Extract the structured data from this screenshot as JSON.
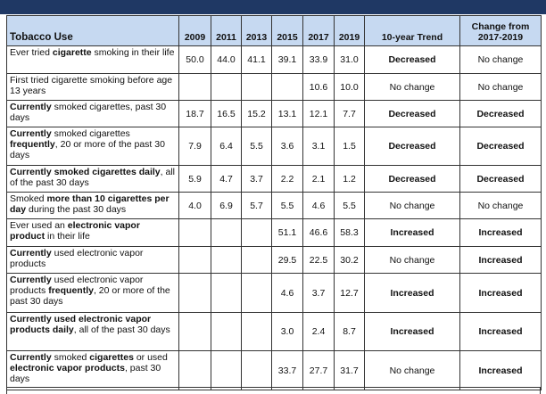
{
  "table": {
    "header": [
      "Tobacco Use",
      "2009",
      "2011",
      "2013",
      "2015",
      "2017",
      "2019",
      "10-year Trend",
      "Change from 2017-2019"
    ],
    "rows": [
      {
        "label": [
          {
            "text": "Ever tried "
          },
          {
            "text": "cigarette",
            "bold": true
          },
          {
            "text": " smoking in their life"
          }
        ],
        "cells": [
          "50.0",
          "44.0",
          "41.1",
          "39.1",
          "33.9",
          "31.0",
          "Decreased",
          "No change"
        ]
      },
      {
        "label": [
          {
            "text": "First tried cigarette smoking before age 13 years"
          }
        ],
        "cells": [
          null,
          null,
          null,
          null,
          "10.6",
          "10.0",
          "No change",
          "No change"
        ]
      },
      {
        "label": [
          {
            "text": "Currently",
            "bold": true
          },
          {
            "text": " smoked cigarettes, past 30 days"
          }
        ],
        "cells": [
          "18.7",
          "16.5",
          "15.2",
          "13.1",
          "12.1",
          "7.7",
          "Decreased",
          "Decreased"
        ]
      },
      {
        "label": [
          {
            "text": "Currently",
            "bold": true
          },
          {
            "text": " smoked cigarettes "
          },
          {
            "text": "frequently",
            "bold": true
          },
          {
            "text": ", 20 or more of the past 30 days"
          }
        ],
        "cells": [
          "7.9",
          "6.4",
          "5.5",
          "3.6",
          "3.1",
          "1.5",
          "Decreased",
          "Decreased"
        ]
      },
      {
        "label": [
          {
            "text": "Currently smoked cigarettes daily",
            "bold": true
          },
          {
            "text": ", all of the past 30 days"
          }
        ],
        "cells": [
          "5.9",
          "4.7",
          "3.7",
          "2.2",
          "2.1",
          "1.2",
          "Decreased",
          "Decreased"
        ]
      },
      {
        "label": [
          {
            "text": "Smoked "
          },
          {
            "text": "more than 10 cigarettes per day",
            "bold": true
          },
          {
            "text": " during the past 30 days"
          }
        ],
        "cells": [
          "4.0",
          "6.9",
          "5.7",
          "5.5",
          "4.6",
          "5.5",
          "No change",
          "No change"
        ]
      },
      {
        "label": [
          {
            "text": "Ever used an "
          },
          {
            "text": "electronic vapor product",
            "bold": true
          },
          {
            "text": " in their life"
          }
        ],
        "cells": [
          null,
          null,
          null,
          "51.1",
          "46.6",
          "58.3",
          "Increased",
          "Increased"
        ]
      },
      {
        "label": [
          {
            "text": "Currently",
            "bold": true
          },
          {
            "text": " used electronic vapor products"
          }
        ],
        "cells": [
          null,
          null,
          null,
          "29.5",
          "22.5",
          "30.2",
          "No change",
          "Increased"
        ]
      },
      {
        "label": [
          {
            "text": "Currently",
            "bold": true
          },
          {
            "text": " used electronic vapor products "
          },
          {
            "text": "frequently",
            "bold": true
          },
          {
            "text": ", 20 or more of the past 30 days"
          }
        ],
        "cells": [
          null,
          null,
          null,
          "4.6",
          "3.7",
          "12.7",
          "Increased",
          "Increased"
        ]
      },
      {
        "label": [
          {
            "text": "Currently used electronic vapor products daily",
            "bold": true
          },
          {
            "text": ",  all of the past 30 days"
          }
        ],
        "cells": [
          null,
          null,
          null,
          "3.0",
          "2.4",
          "8.7",
          "Increased",
          "Increased"
        ]
      },
      {
        "label": [
          {
            "text": "Currently",
            "bold": true
          },
          {
            "text": " smoked "
          },
          {
            "text": "cigarettes",
            "bold": true
          },
          {
            "text": " or used "
          },
          {
            "text": "electronic vapor products",
            "bold": true
          },
          {
            "text": ", past 30 days"
          }
        ],
        "cells": [
          null,
          null,
          null,
          "33.7",
          "27.7",
          "31.7",
          "No change",
          "Increased"
        ]
      }
    ]
  }
}
